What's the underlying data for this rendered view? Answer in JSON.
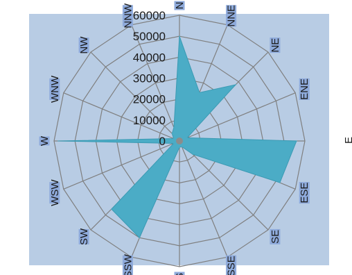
{
  "chart_data": {
    "type": "radar",
    "title": "",
    "directions": [
      "N",
      "NNE",
      "NE",
      "ENE",
      "E",
      "ESE",
      "SE",
      "SSE",
      "S",
      "SSW",
      "SW",
      "WSW",
      "W",
      "WNW",
      "NW",
      "NNW"
    ],
    "series": [
      {
        "values": [
          50000,
          25000,
          38000,
          4000,
          56000,
          52000,
          9000,
          3000,
          3000,
          50000,
          46000,
          3000,
          58000,
          3000,
          5000,
          7000
        ]
      }
    ],
    "radial_axis": {
      "min": 0,
      "max": 60000,
      "step": 10000,
      "tick_labels": [
        "0",
        "10000",
        "20000",
        "30000",
        "40000",
        "50000",
        "60000"
      ]
    },
    "grid": true,
    "legend": "none",
    "colors": {
      "plot_background": "#b8cce4",
      "grid": "#7f7f7f",
      "fill": "#4bacc6",
      "label_box": "#8eaadb"
    }
  }
}
